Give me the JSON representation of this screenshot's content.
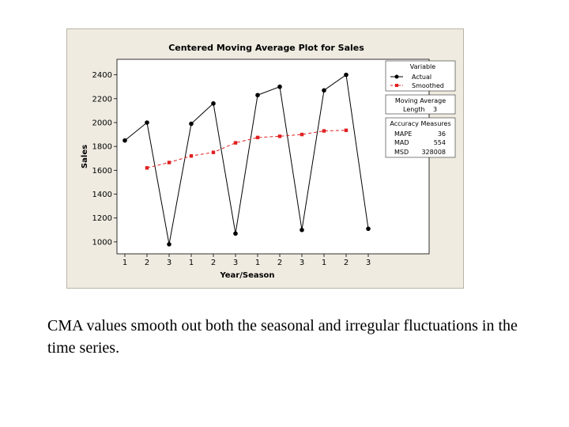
{
  "chart_data": {
    "type": "line",
    "title": "Centered Moving Average Plot for Sales",
    "xlabel": "Year/Season",
    "ylabel": "Sales",
    "categories": [
      "1",
      "2",
      "3",
      "1",
      "2",
      "3",
      "1",
      "2",
      "3",
      "1",
      "2",
      "3"
    ],
    "yticks": [
      1000,
      1200,
      1400,
      1600,
      1800,
      2000,
      2200,
      2400
    ],
    "ylim": [
      900,
      2530
    ],
    "grid": false,
    "legend_position": "right",
    "series": [
      {
        "name": "Actual",
        "color": "#000000",
        "marker": "circle",
        "line": "solid",
        "values": [
          1850,
          2000,
          980,
          1990,
          2160,
          1070,
          2230,
          2300,
          1100,
          2270,
          2400,
          1110
        ]
      },
      {
        "name": "Smoothed",
        "color": "#e02020",
        "marker": "square",
        "line": "dashed",
        "values": [
          null,
          1620,
          1665,
          1720,
          1750,
          1830,
          1875,
          1885,
          1900,
          1930,
          1935,
          null
        ]
      }
    ],
    "legend": {
      "title": "Variable",
      "items": [
        "Actual",
        "Smoothed"
      ]
    },
    "moving_average_box": {
      "title": "Moving Average",
      "length_label": "Length",
      "length_value": "3"
    },
    "accuracy_box": {
      "title": "Accuracy Measures",
      "rows": [
        {
          "label": "MAPE",
          "value": "36"
        },
        {
          "label": "MAD",
          "value": "554"
        },
        {
          "label": "MSD",
          "value": "328008"
        }
      ]
    }
  },
  "caption": "CMA values smooth out both the seasonal and irregular fluctuations in the time series."
}
